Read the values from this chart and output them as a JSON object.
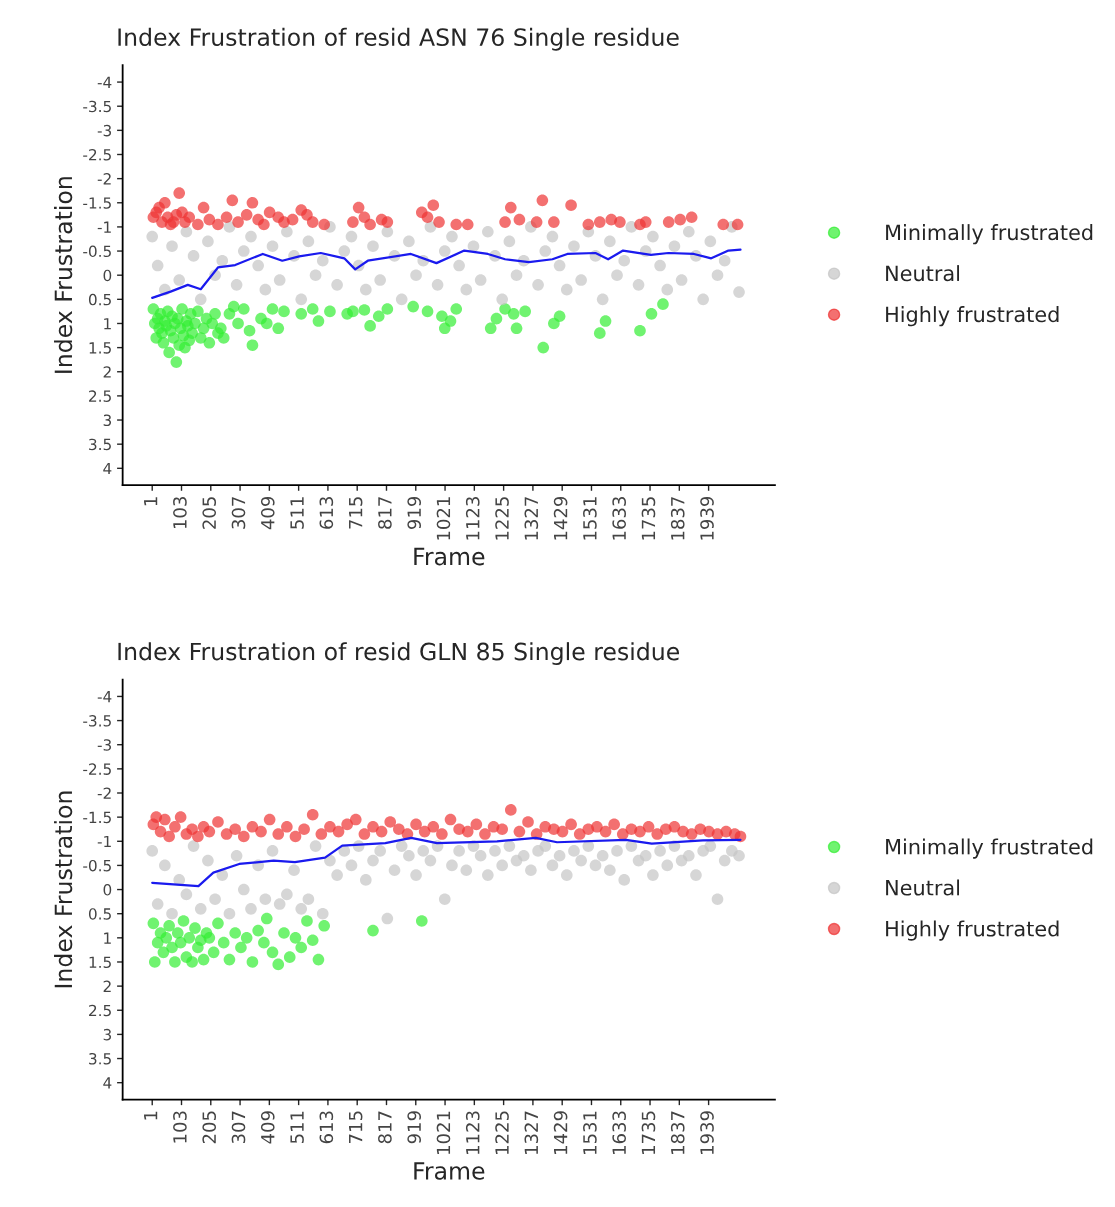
{
  "chart_data": [
    {
      "type": "scatter",
      "title": "Index Frustration of resid ASN 76 Single residue",
      "xlabel": "Frame",
      "ylabel": "Index Frustration",
      "xlim": [
        -102,
        2170
      ],
      "ylim": [
        4.35,
        -4.35
      ],
      "xticks": [
        1,
        103,
        205,
        307,
        409,
        511,
        613,
        715,
        817,
        919,
        1021,
        1123,
        1225,
        1327,
        1429,
        1531,
        1633,
        1735,
        1837,
        1939
      ],
      "yticks": [
        -4,
        -3.5,
        -3,
        -2.5,
        -2,
        -1.5,
        -1,
        -0.5,
        0,
        0.5,
        1,
        1.5,
        2,
        2.5,
        3,
        3.5,
        4
      ],
      "grid": false,
      "legend": "right",
      "marker": "circle",
      "series": [
        {
          "name": "Minimally frustrated",
          "color": "#33ee33",
          "x": [
            5,
            10,
            15,
            20,
            25,
            30,
            35,
            40,
            45,
            50,
            55,
            60,
            65,
            70,
            75,
            80,
            85,
            90,
            95,
            100,
            105,
            110,
            115,
            120,
            125,
            130,
            135,
            140,
            150,
            160,
            170,
            180,
            190,
            200,
            210,
            220,
            230,
            240,
            250,
            270,
            285,
            300,
            320,
            340,
            350,
            380,
            400,
            420,
            440,
            460,
            520,
            560,
            580,
            620,
            680,
            700,
            740,
            760,
            790,
            820,
            910,
            960,
            1010,
            1020,
            1040,
            1060,
            1180,
            1200,
            1230,
            1260,
            1270,
            1300,
            1363,
            1400,
            1420,
            1560,
            1580,
            1700,
            1740,
            1780
          ],
          "values": [
            0.7,
            1.0,
            1.3,
            0.9,
            1.1,
            0.8,
            1.2,
            1.4,
            0.95,
            1.05,
            0.75,
            1.6,
            1.15,
            0.85,
            1.3,
            1.0,
            1.8,
            0.9,
            1.45,
            1.1,
            0.7,
            1.25,
            1.5,
            0.95,
            1.05,
            1.35,
            0.8,
            1.2,
            1.0,
            0.75,
            1.3,
            1.1,
            0.9,
            1.4,
            1.0,
            0.8,
            1.2,
            1.1,
            1.3,
            0.8,
            0.65,
            1.0,
            0.7,
            1.15,
            1.45,
            0.9,
            1.0,
            0.7,
            1.1,
            0.75,
            0.8,
            0.7,
            0.95,
            0.75,
            0.8,
            0.75,
            0.72,
            1.05,
            0.85,
            0.7,
            0.65,
            0.75,
            0.85,
            1.1,
            0.95,
            0.7,
            1.1,
            0.9,
            0.7,
            0.8,
            1.1,
            0.75,
            1.5,
            1.0,
            0.85,
            1.2,
            0.95,
            1.15,
            0.8,
            0.6
          ]
        },
        {
          "name": "Neutral",
          "color": "#c4c4c4",
          "x": [
            1,
            20,
            45,
            70,
            95,
            120,
            145,
            170,
            195,
            220,
            245,
            270,
            295,
            320,
            345,
            370,
            395,
            420,
            445,
            470,
            495,
            520,
            545,
            570,
            595,
            620,
            645,
            670,
            695,
            720,
            745,
            770,
            795,
            820,
            845,
            870,
            895,
            920,
            945,
            970,
            995,
            1020,
            1045,
            1070,
            1095,
            1120,
            1145,
            1170,
            1195,
            1220,
            1245,
            1270,
            1295,
            1320,
            1345,
            1370,
            1395,
            1420,
            1445,
            1470,
            1495,
            1520,
            1545,
            1570,
            1595,
            1620,
            1645,
            1670,
            1695,
            1720,
            1745,
            1770,
            1795,
            1820,
            1845,
            1870,
            1895,
            1920,
            1945,
            1970,
            1995,
            2020,
            2045
          ],
          "values": [
            -0.8,
            -0.2,
            0.3,
            -0.6,
            0.1,
            -0.9,
            -0.4,
            0.5,
            -0.7,
            0.0,
            -0.3,
            -1.0,
            0.2,
            -0.5,
            -0.8,
            -0.2,
            0.3,
            -0.6,
            0.1,
            -0.9,
            -0.4,
            0.5,
            -0.7,
            0.0,
            -0.3,
            -1.0,
            0.2,
            -0.5,
            -0.8,
            -0.2,
            0.3,
            -0.6,
            0.1,
            -0.9,
            -0.4,
            0.5,
            -0.7,
            0.0,
            -0.3,
            -1.0,
            0.2,
            -0.5,
            -0.8,
            -0.2,
            0.3,
            -0.6,
            0.1,
            -0.9,
            -0.4,
            0.5,
            -0.7,
            0.0,
            -0.3,
            -1.0,
            0.2,
            -0.5,
            -0.8,
            -0.2,
            0.3,
            -0.6,
            0.1,
            -0.9,
            -0.4,
            0.5,
            -0.7,
            0.0,
            -0.3,
            -1.0,
            0.2,
            -0.5,
            -0.8,
            -0.2,
            0.3,
            -0.6,
            0.1,
            -0.9,
            -0.4,
            0.5,
            -0.7,
            0.0,
            -0.3,
            -1.0,
            0.35
          ]
        },
        {
          "name": "Highly frustrated",
          "color": "#ee3333",
          "x": [
            5,
            15,
            25,
            35,
            45,
            55,
            65,
            75,
            85,
            95,
            105,
            115,
            130,
            160,
            180,
            200,
            230,
            260,
            280,
            300,
            330,
            350,
            370,
            390,
            410,
            440,
            460,
            490,
            520,
            540,
            560,
            600,
            700,
            720,
            740,
            760,
            800,
            820,
            940,
            960,
            980,
            1000,
            1060,
            1100,
            1230,
            1250,
            1280,
            1340,
            1360,
            1400,
            1460,
            1520,
            1560,
            1600,
            1630,
            1700,
            1720,
            1800,
            1840,
            1880,
            1990,
            2040
          ],
          "values": [
            -1.2,
            -1.3,
            -1.4,
            -1.1,
            -1.5,
            -1.2,
            -1.05,
            -1.1,
            -1.25,
            -1.7,
            -1.3,
            -1.1,
            -1.2,
            -1.05,
            -1.4,
            -1.15,
            -1.05,
            -1.2,
            -1.55,
            -1.1,
            -1.25,
            -1.5,
            -1.15,
            -1.05,
            -1.3,
            -1.2,
            -1.1,
            -1.15,
            -1.35,
            -1.25,
            -1.1,
            -1.05,
            -1.1,
            -1.4,
            -1.2,
            -1.05,
            -1.15,
            -1.1,
            -1.3,
            -1.2,
            -1.45,
            -1.1,
            -1.05,
            -1.05,
            -1.1,
            -1.4,
            -1.15,
            -1.1,
            -1.55,
            -1.1,
            -1.45,
            -1.05,
            -1.1,
            -1.15,
            -1.1,
            -1.05,
            -1.1,
            -1.1,
            -1.15,
            -1.2,
            -1.05,
            -1.05
          ]
        },
        {
          "type": "line",
          "marker": "none",
          "color": "#1a1aee",
          "x": [
            1,
            65,
            125,
            170,
            230,
            290,
            386,
            454,
            513,
            588,
            670,
            708,
            752,
            902,
            991,
            1088,
            1170,
            1230,
            1313,
            1395,
            1447,
            1545,
            1589,
            1641,
            1738,
            1799,
            1888,
            1948,
            2008,
            2050
          ],
          "values": [
            0.47,
            0.34,
            0.2,
            0.29,
            -0.16,
            -0.21,
            -0.44,
            -0.3,
            -0.39,
            -0.46,
            -0.35,
            -0.12,
            -0.3,
            -0.44,
            -0.25,
            -0.51,
            -0.44,
            -0.33,
            -0.27,
            -0.33,
            -0.44,
            -0.46,
            -0.33,
            -0.51,
            -0.42,
            -0.46,
            -0.44,
            -0.35,
            -0.51,
            -0.53
          ]
        }
      ]
    },
    {
      "type": "scatter",
      "title": "Index Frustration of resid GLN 85 Single residue",
      "xlabel": "Frame",
      "ylabel": "Index Frustration",
      "xlim": [
        -102,
        2170
      ],
      "ylim": [
        4.35,
        -4.35
      ],
      "xticks": [
        1,
        103,
        205,
        307,
        409,
        511,
        613,
        715,
        817,
        919,
        1021,
        1123,
        1225,
        1327,
        1429,
        1531,
        1633,
        1735,
        1837,
        1939
      ],
      "yticks": [
        -4,
        -3.5,
        -3,
        -2.5,
        -2,
        -1.5,
        -1,
        -0.5,
        0,
        0.5,
        1,
        1.5,
        2,
        2.5,
        3,
        3.5,
        4
      ],
      "grid": false,
      "legend": "right",
      "marker": "circle",
      "series": [
        {
          "name": "Minimally frustrated",
          "color": "#33ee33",
          "x": [
            5,
            10,
            20,
            30,
            40,
            50,
            60,
            70,
            80,
            90,
            100,
            110,
            120,
            130,
            140,
            150,
            160,
            170,
            180,
            190,
            200,
            215,
            230,
            250,
            270,
            290,
            310,
            330,
            350,
            370,
            390,
            400,
            420,
            440,
            460,
            480,
            500,
            520,
            540,
            560,
            580,
            600,
            770,
            940
          ],
          "values": [
            0.7,
            1.5,
            1.1,
            0.9,
            1.3,
            1.0,
            0.75,
            1.2,
            1.5,
            0.9,
            1.1,
            0.65,
            1.4,
            1.0,
            1.5,
            0.8,
            1.2,
            1.05,
            1.45,
            0.9,
            1.0,
            1.3,
            0.7,
            1.1,
            1.45,
            0.9,
            1.2,
            1.0,
            1.5,
            0.85,
            1.1,
            0.6,
            1.3,
            1.55,
            0.9,
            1.4,
            1.0,
            1.2,
            0.65,
            1.05,
            1.45,
            0.75,
            0.85,
            0.65
          ]
        },
        {
          "name": "Neutral",
          "color": "#c4c4c4",
          "x": [
            1,
            20,
            45,
            70,
            95,
            120,
            145,
            170,
            195,
            220,
            245,
            270,
            295,
            320,
            345,
            370,
            395,
            420,
            445,
            470,
            495,
            520,
            545,
            570,
            595,
            620,
            645,
            670,
            695,
            720,
            745,
            770,
            795,
            820,
            845,
            870,
            895,
            920,
            945,
            970,
            995,
            1020,
            1045,
            1070,
            1095,
            1120,
            1145,
            1170,
            1195,
            1220,
            1245,
            1270,
            1295,
            1320,
            1345,
            1370,
            1395,
            1420,
            1445,
            1470,
            1495,
            1520,
            1545,
            1570,
            1595,
            1620,
            1645,
            1670,
            1695,
            1720,
            1745,
            1770,
            1795,
            1820,
            1845,
            1870,
            1895,
            1920,
            1945,
            1970,
            1995,
            2020,
            2045
          ],
          "values": [
            -0.8,
            0.3,
            -0.5,
            0.5,
            -0.2,
            0.1,
            -0.9,
            0.4,
            -0.6,
            0.2,
            -0.3,
            0.5,
            -0.7,
            0.0,
            0.4,
            -0.5,
            0.2,
            -0.8,
            0.3,
            0.1,
            -0.4,
            0.4,
            0.2,
            -0.9,
            0.5,
            -0.6,
            -0.3,
            -0.8,
            -0.5,
            -0.9,
            -0.2,
            -0.6,
            -0.8,
            0.6,
            -0.4,
            -0.9,
            -0.7,
            -0.3,
            -0.8,
            -0.6,
            -0.9,
            0.2,
            -0.5,
            -0.8,
            -0.4,
            -0.9,
            -0.7,
            -0.3,
            -0.8,
            -0.5,
            -0.9,
            -0.6,
            -0.7,
            -0.4,
            -0.8,
            -0.9,
            -0.5,
            -0.7,
            -0.3,
            -0.8,
            -0.6,
            -0.9,
            -0.5,
            -0.7,
            -0.4,
            -0.8,
            -0.2,
            -0.9,
            -0.6,
            -0.7,
            -0.3,
            -0.8,
            -0.5,
            -0.9,
            -0.6,
            -0.7,
            -0.3,
            -0.8,
            -0.9,
            0.2,
            -0.6,
            -0.8,
            -0.7
          ]
        },
        {
          "name": "Highly frustrated",
          "color": "#ee3333",
          "x": [
            5,
            15,
            30,
            45,
            60,
            80,
            100,
            120,
            140,
            160,
            180,
            200,
            230,
            260,
            290,
            320,
            350,
            380,
            410,
            440,
            470,
            500,
            530,
            560,
            590,
            620,
            650,
            680,
            710,
            740,
            770,
            800,
            830,
            860,
            890,
            920,
            950,
            980,
            1010,
            1040,
            1070,
            1100,
            1130,
            1160,
            1190,
            1220,
            1250,
            1280,
            1310,
            1340,
            1370,
            1400,
            1430,
            1460,
            1490,
            1520,
            1550,
            1580,
            1610,
            1640,
            1670,
            1700,
            1730,
            1760,
            1790,
            1820,
            1850,
            1880,
            1910,
            1940,
            1970,
            2000,
            2030,
            2050
          ],
          "values": [
            -1.35,
            -1.5,
            -1.2,
            -1.45,
            -1.1,
            -1.3,
            -1.5,
            -1.15,
            -1.25,
            -1.1,
            -1.3,
            -1.2,
            -1.4,
            -1.15,
            -1.25,
            -1.1,
            -1.3,
            -1.2,
            -1.45,
            -1.15,
            -1.3,
            -1.1,
            -1.25,
            -1.55,
            -1.15,
            -1.3,
            -1.2,
            -1.35,
            -1.45,
            -1.15,
            -1.3,
            -1.2,
            -1.4,
            -1.25,
            -1.15,
            -1.35,
            -1.2,
            -1.3,
            -1.15,
            -1.45,
            -1.25,
            -1.2,
            -1.35,
            -1.15,
            -1.3,
            -1.25,
            -1.65,
            -1.2,
            -1.4,
            -1.15,
            -1.3,
            -1.25,
            -1.2,
            -1.35,
            -1.15,
            -1.25,
            -1.3,
            -1.2,
            -1.35,
            -1.15,
            -1.25,
            -1.2,
            -1.3,
            -1.15,
            -1.25,
            -1.3,
            -1.2,
            -1.15,
            -1.25,
            -1.2,
            -1.15,
            -1.2,
            -1.15,
            -1.1
          ]
        },
        {
          "type": "line",
          "marker": "none",
          "color": "#1a1aee",
          "x": [
            1,
            162,
            214,
            304,
            424,
            498,
            603,
            663,
            813,
            903,
            993,
            1202,
            1337,
            1411,
            1651,
            1741,
            1919,
            2050
          ],
          "values": [
            -0.14,
            -0.07,
            -0.35,
            -0.53,
            -0.6,
            -0.57,
            -0.66,
            -0.91,
            -0.96,
            -1.07,
            -0.96,
            -1.0,
            -1.07,
            -0.98,
            -1.03,
            -0.95,
            -1.02,
            -1.03
          ]
        }
      ]
    }
  ]
}
